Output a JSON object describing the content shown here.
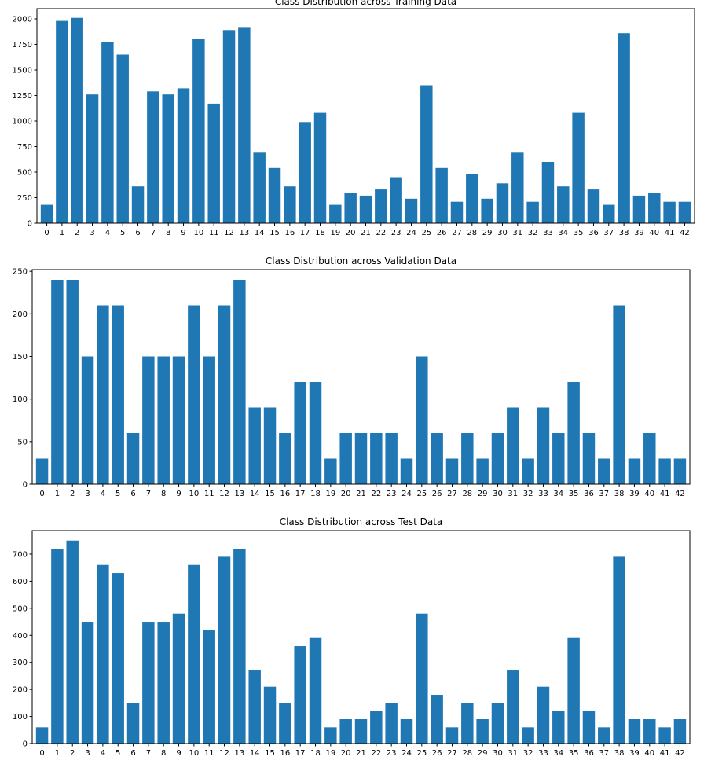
{
  "chart_data": [
    {
      "type": "bar",
      "title": "Class Distribution across Training Data",
      "xlabel": "",
      "ylabel": "",
      "categories": [
        "0",
        "1",
        "2",
        "3",
        "4",
        "5",
        "6",
        "7",
        "8",
        "9",
        "10",
        "11",
        "12",
        "13",
        "14",
        "15",
        "16",
        "17",
        "18",
        "19",
        "20",
        "21",
        "22",
        "23",
        "24",
        "25",
        "26",
        "27",
        "28",
        "29",
        "30",
        "31",
        "32",
        "33",
        "34",
        "35",
        "36",
        "37",
        "38",
        "39",
        "40",
        "41",
        "42"
      ],
      "values": [
        180,
        1980,
        2010,
        1260,
        1770,
        1650,
        360,
        1290,
        1260,
        1320,
        1800,
        1170,
        1890,
        1920,
        690,
        540,
        360,
        990,
        1080,
        180,
        300,
        270,
        330,
        450,
        240,
        1350,
        540,
        210,
        480,
        240,
        390,
        690,
        210,
        600,
        360,
        1080,
        330,
        180,
        1860,
        270,
        300,
        210,
        210
      ],
      "ylim": [
        0,
        2100
      ],
      "yticks": [
        0,
        250,
        500,
        750,
        1000,
        1250,
        1500,
        1750,
        2000
      ],
      "color": "#1f77b4",
      "grid": false
    },
    {
      "type": "bar",
      "title": "Class Distribution across Validation Data",
      "xlabel": "",
      "ylabel": "",
      "categories": [
        "0",
        "1",
        "2",
        "3",
        "4",
        "5",
        "6",
        "7",
        "8",
        "9",
        "10",
        "11",
        "12",
        "13",
        "14",
        "15",
        "16",
        "17",
        "18",
        "19",
        "20",
        "21",
        "22",
        "23",
        "24",
        "25",
        "26",
        "27",
        "28",
        "29",
        "30",
        "31",
        "32",
        "33",
        "34",
        "35",
        "36",
        "37",
        "38",
        "39",
        "40",
        "41",
        "42"
      ],
      "values": [
        30,
        240,
        240,
        150,
        210,
        210,
        60,
        150,
        150,
        150,
        210,
        150,
        210,
        240,
        90,
        90,
        60,
        120,
        120,
        30,
        60,
        60,
        60,
        60,
        30,
        150,
        60,
        30,
        60,
        30,
        60,
        90,
        30,
        90,
        60,
        120,
        60,
        30,
        210,
        30,
        60,
        30,
        30
      ],
      "ylim": [
        0,
        252
      ],
      "yticks": [
        0,
        50,
        100,
        150,
        200,
        250
      ],
      "color": "#1f77b4",
      "grid": false
    },
    {
      "type": "bar",
      "title": "Class Distribution across Test Data",
      "xlabel": "",
      "ylabel": "",
      "categories": [
        "0",
        "1",
        "2",
        "3",
        "4",
        "5",
        "6",
        "7",
        "8",
        "9",
        "10",
        "11",
        "12",
        "13",
        "14",
        "15",
        "16",
        "17",
        "18",
        "19",
        "20",
        "21",
        "22",
        "23",
        "24",
        "25",
        "26",
        "27",
        "28",
        "29",
        "30",
        "31",
        "32",
        "33",
        "34",
        "35",
        "36",
        "37",
        "38",
        "39",
        "40",
        "41",
        "42"
      ],
      "values": [
        60,
        720,
        750,
        450,
        660,
        630,
        150,
        450,
        450,
        480,
        660,
        420,
        690,
        720,
        270,
        210,
        150,
        360,
        390,
        60,
        90,
        90,
        120,
        150,
        90,
        480,
        180,
        60,
        150,
        90,
        150,
        270,
        60,
        210,
        120,
        390,
        120,
        60,
        690,
        90,
        90,
        60,
        90
      ],
      "ylim": [
        0,
        787
      ],
      "yticks": [
        0,
        100,
        200,
        300,
        400,
        500,
        600,
        700
      ],
      "color": "#1f77b4",
      "grid": false
    }
  ]
}
